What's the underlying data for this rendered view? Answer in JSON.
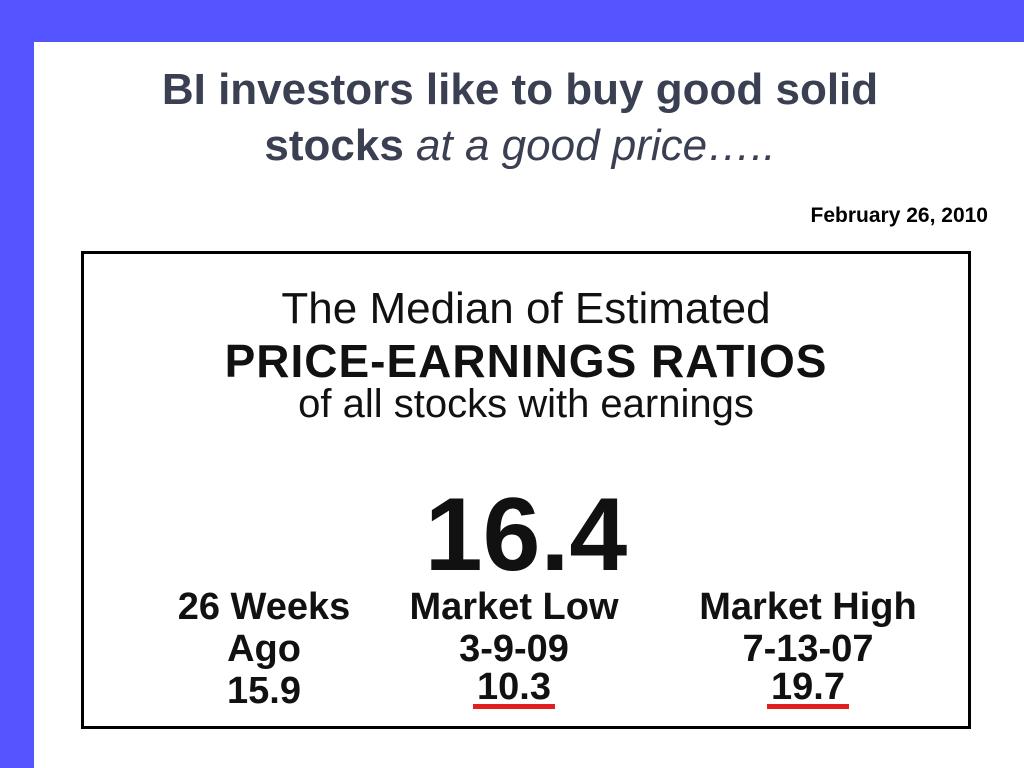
{
  "slide": {
    "title_line1": "BI investors like to buy good solid",
    "title_line2_bold": "stocks",
    "title_line2_italic": "at a good price…..",
    "date": "February 26, 2010"
  },
  "figure": {
    "line1": "The Median of Estimated",
    "line2": "PRICE-EARNINGS RATIOS",
    "line3": "of all stocks with earnings",
    "current_value": "16.4",
    "columns": [
      {
        "head": "26 Weeks",
        "sub": "Ago",
        "value": "15.9"
      },
      {
        "head": "Market Low",
        "sub": "3-9-09",
        "value": "10.3"
      },
      {
        "head": "Market High",
        "sub": "7-13-07",
        "value": "19.7"
      }
    ]
  },
  "colors": {
    "accent_bar": "#5555ff",
    "underline": "#e02020",
    "title_text": "#3a3f52"
  }
}
